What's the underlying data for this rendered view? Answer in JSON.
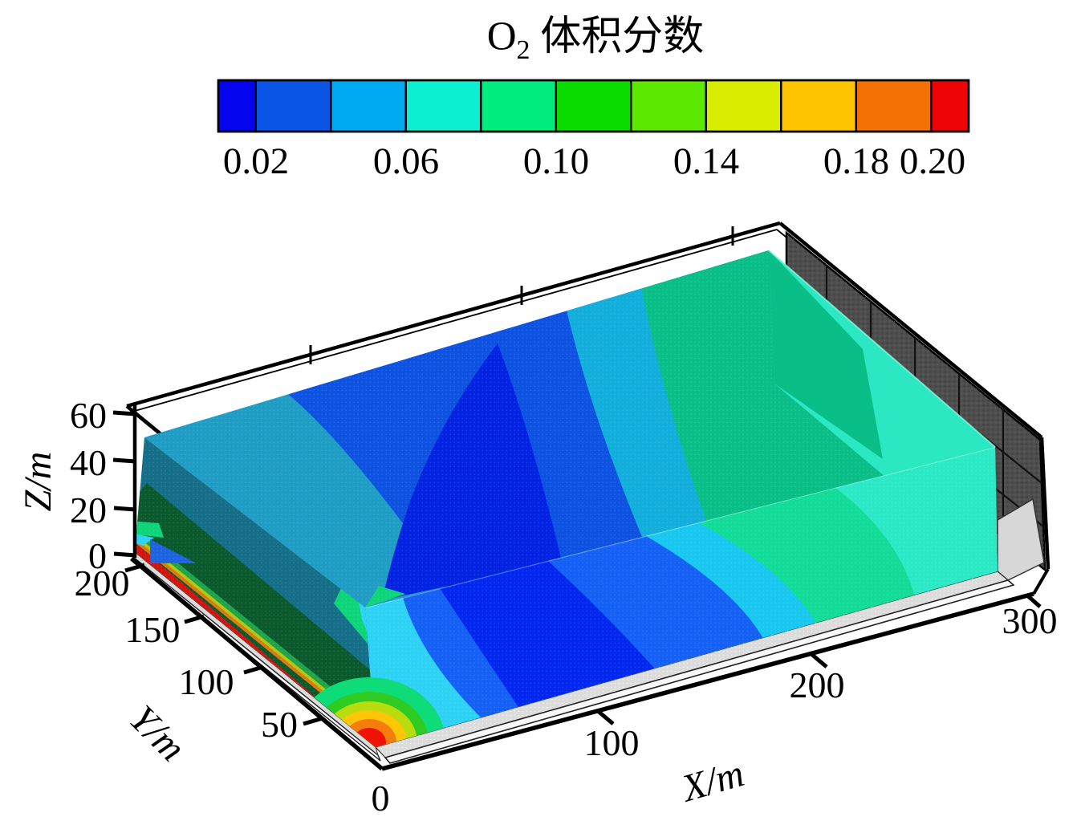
{
  "title": {
    "o2_base": "O",
    "o2_subscript": "2",
    "suffix": " 体积分数"
  },
  "colorbar": {
    "tick_labels": [
      "0.02",
      "0.06",
      "0.10",
      "0.14",
      "0.18",
      "0.20"
    ],
    "segment_colors": [
      "#0404EE",
      "#0A55E6",
      "#00AAF0",
      "#0CEFD0",
      "#00EC7E",
      "#0ADC00",
      "#5CE800",
      "#D8EC00",
      "#FFC400",
      "#F47106",
      "#EE0404"
    ],
    "border_color": "#000000"
  },
  "axes": {
    "origin_label": "0",
    "x": {
      "title": "X/m",
      "tick_labels": [
        "100",
        "200",
        "300"
      ]
    },
    "y": {
      "title": "Y/m",
      "tick_labels": [
        "200",
        "150",
        "100",
        "50"
      ]
    },
    "z": {
      "title": "Z/m",
      "tick_labels": [
        "60",
        "40",
        "20",
        "0"
      ]
    }
  },
  "chart_data": {
    "type": "heatmap",
    "title": "O2 体积分数 (O2 volume fraction)",
    "plot_style": "3D rectangular slab with contour flood on faces, Tecplot-style, viewed from front-right-above",
    "colorbar": {
      "orientation": "horizontal",
      "position": "top",
      "range": [
        0.01,
        0.21
      ],
      "level_step": 0.02,
      "labeled_levels": [
        0.02,
        0.06,
        0.1,
        0.14,
        0.18,
        0.2
      ],
      "colors_low_to_high": [
        "#0404EE",
        "#0A55E6",
        "#00AAF0",
        "#0CEFD0",
        "#00EC7E",
        "#0ADC00",
        "#5CE800",
        "#D8EC00",
        "#FFC400",
        "#F47106",
        "#EE0404"
      ]
    },
    "axis_ranges": {
      "X_m": [
        0,
        300
      ],
      "Y_m": [
        0,
        200
      ],
      "Z_m": [
        0,
        60
      ]
    },
    "x_ticks": [
      0,
      100,
      200,
      300
    ],
    "y_ticks": [
      0,
      50,
      100,
      150,
      200
    ],
    "z_ticks": [
      0,
      20,
      40,
      60
    ],
    "surfaces": [
      {
        "face": "top (Z=60)",
        "bands_left_to_right": [
          {
            "o2": 0.05,
            "color": "teal-cyan"
          },
          {
            "o2": 0.03,
            "color": "blue"
          },
          {
            "o2": 0.02,
            "color": "dark blue (widest, middle)"
          },
          {
            "o2": 0.03,
            "color": "blue"
          },
          {
            "o2": 0.06,
            "color": "cyan arc"
          },
          {
            "o2": 0.08,
            "color": "spring green (large right region)"
          }
        ]
      },
      {
        "face": "front (Y=0)",
        "bands_left_to_right": [
          {
            "o2": 0.2,
            "color": "red inlet bullseye at origin corner, rings 0.20 -> 0.08"
          },
          {
            "o2": 0.06,
            "color": "cyan column"
          },
          {
            "o2": 0.03,
            "color": "blue"
          },
          {
            "o2": 0.02,
            "color": "dark blue (widest)"
          },
          {
            "o2": 0.03,
            "color": "blue"
          },
          {
            "o2": 0.05,
            "color": "cyan"
          },
          {
            "o2": 0.08,
            "color": "spring green"
          },
          {
            "o2": 0.07,
            "color": "turquoise right end"
          }
        ]
      },
      {
        "face": "left (X=0, shaded dark)",
        "bands_top_to_bottom": [
          {
            "o2": 0.05,
            "color": "dark teal"
          },
          {
            "o2": 0.08,
            "color": "dark green"
          },
          {
            "o2": 0.1,
            "color": "green strip"
          },
          {
            "o2": 0.13,
            "color": "yellow strip"
          },
          {
            "o2": 0.16,
            "color": "orange strip"
          },
          {
            "o2": 0.2,
            "color": "red strip along floor"
          }
        ]
      },
      {
        "face": "right boundary (X=300)",
        "style": "dark gray hatched wall with grid lines"
      },
      {
        "face": "floor",
        "style": "light gray stippled slab with black edges"
      }
    ],
    "legend_position": "top",
    "grid": false
  }
}
